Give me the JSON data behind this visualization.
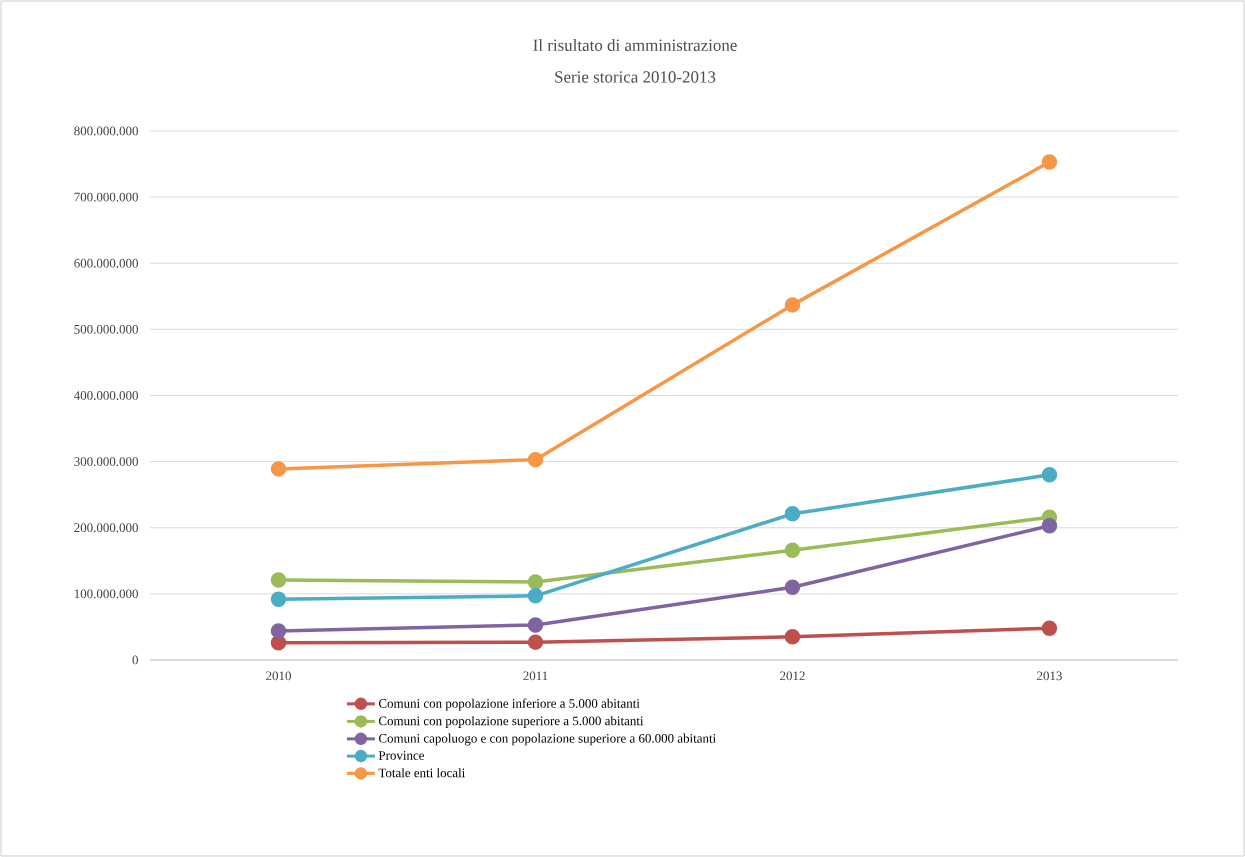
{
  "chart_data": {
    "type": "line",
    "title": "Il risultato di amministrazione",
    "subtitle": "Serie storica 2010-2013",
    "categories": [
      "2010",
      "2011",
      "2012",
      "2013"
    ],
    "series": [
      {
        "name": "Comuni con popolazione inferiore a 5.000 abitanti",
        "color": "#c0504d",
        "values": [
          26000000,
          27000000,
          35000000,
          48000000
        ]
      },
      {
        "name": "Comuni con popolazione superiore a 5.000 abitanti",
        "color": "#9bbb59",
        "values": [
          121000000,
          118000000,
          166000000,
          216000000
        ]
      },
      {
        "name": "Comuni capoluogo e con popolazione superiore a 60.000 abitanti",
        "color": "#8064a2",
        "values": [
          44000000,
          53000000,
          110000000,
          203000000
        ]
      },
      {
        "name": "Province",
        "color": "#4bacc6",
        "values": [
          92000000,
          97000000,
          221000000,
          280000000
        ]
      },
      {
        "name": "Totale enti locali",
        "color": "#f79646",
        "values": [
          289000000,
          303000000,
          537000000,
          753000000
        ]
      }
    ],
    "ylim": [
      0,
      800000000
    ],
    "yticks": [
      0,
      {
        "value": 100000000,
        "label": "100.000.000"
      },
      {
        "value": 200000000,
        "label": "200.000.000"
      },
      {
        "value": 300000000,
        "label": "300.000.000"
      },
      {
        "value": 400000000,
        "label": "400.000.000"
      },
      {
        "value": 500000000,
        "label": "500.000.000"
      },
      {
        "value": 600000000,
        "label": "600.000.000"
      },
      {
        "value": 700000000,
        "label": "700.000.000"
      },
      {
        "value": 800000000,
        "label": "800.000.000"
      }
    ],
    "grid": "y",
    "legend": "bottom",
    "marker": "circle",
    "line_style": "solid"
  }
}
